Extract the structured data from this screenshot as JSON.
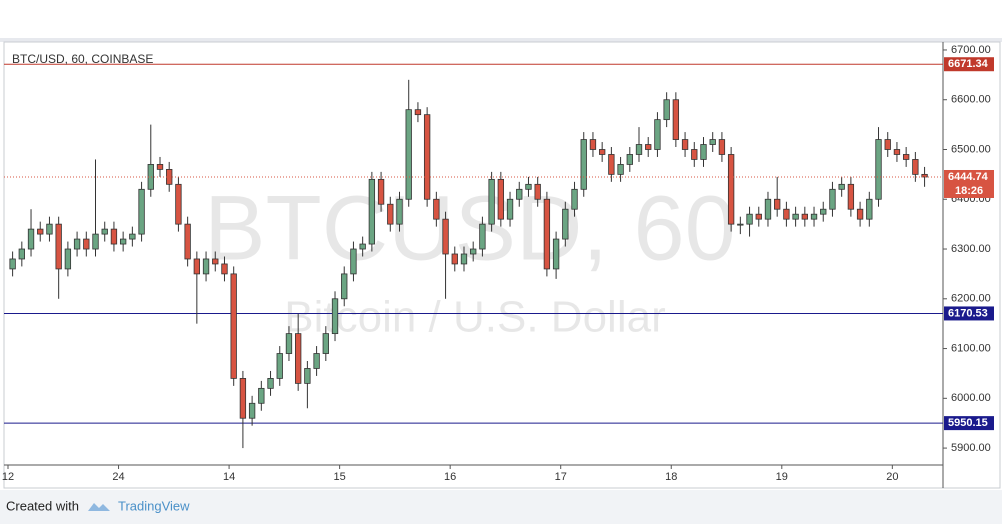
{
  "chart_data": {
    "type": "candlestick",
    "title": "BTC/USD, 60, COINBASE",
    "watermark": "BTCUSD, 60",
    "watermark_subtitle": "Bitcoin / U.S. Dollar",
    "footer_prefix": "Created with",
    "footer_brand": "TradingView",
    "up_color": "#6ba583",
    "down_color": "#d75442",
    "xlim": [
      0,
      203
    ],
    "xticks": [
      {
        "value": 0,
        "label": "12"
      },
      24,
      {
        "value": 48,
        "label": "14"
      },
      {
        "value": 72,
        "label": "15"
      },
      {
        "value": 96,
        "label": "16"
      },
      {
        "value": 120,
        "label": "17"
      },
      {
        "value": 144,
        "label": "18"
      },
      {
        "value": 168,
        "label": "19"
      },
      {
        "value": 192,
        "label": "20"
      }
    ],
    "ylim": [
      5866,
      6716
    ],
    "yticks": [
      {
        "value": 5900,
        "label": "5900.00"
      },
      {
        "value": 6000,
        "label": "6000.00"
      },
      {
        "value": 6100,
        "label": "6100.00"
      },
      {
        "value": 6200,
        "label": "6200.00"
      },
      {
        "value": 6300,
        "label": "6300.00"
      },
      {
        "value": 6400,
        "label": "6400.00"
      },
      {
        "value": 6500,
        "label": "6500.00"
      },
      {
        "value": 6600,
        "label": "6600.00"
      },
      {
        "value": 6700,
        "label": "6700.00"
      }
    ],
    "levels": [
      {
        "value": 6671.34,
        "color": "#c0392b"
      },
      {
        "value": 6170.53,
        "color": "#1a1a8c"
      },
      {
        "value": 5950.15,
        "color": "#1a1a8c"
      }
    ],
    "last_price": 6444.74,
    "countdown": "18:26",
    "candles": {
      "x": [
        1,
        3,
        5,
        7,
        9,
        11,
        13,
        15,
        17,
        19,
        21,
        23,
        25,
        27,
        29,
        31,
        33,
        35,
        37,
        39,
        41,
        43,
        45,
        47,
        49,
        51,
        53,
        55,
        57,
        59,
        61,
        63,
        65,
        67,
        69,
        71,
        73,
        75,
        77,
        79,
        81,
        83,
        85,
        87,
        89,
        91,
        93,
        95,
        97,
        99,
        101,
        103,
        105,
        107,
        109,
        111,
        113,
        115,
        117,
        119,
        121,
        123,
        125,
        127,
        129,
        131,
        133,
        135,
        137,
        139,
        141,
        143,
        145,
        147,
        149,
        151,
        153,
        155,
        157,
        159,
        161,
        163,
        165,
        167,
        169,
        171,
        173,
        175,
        177,
        179,
        181,
        183,
        185,
        187,
        189,
        191,
        193,
        195,
        197,
        199
      ],
      "open": [
        6260,
        6280,
        6300,
        6340,
        6330,
        6350,
        6260,
        6300,
        6320,
        6300,
        6330,
        6340,
        6310,
        6320,
        6330,
        6420,
        6470,
        6460,
        6430,
        6350,
        6280,
        6250,
        6280,
        6270,
        6250,
        6040,
        5960,
        5990,
        6020,
        6040,
        6090,
        6130,
        6030,
        6060,
        6090,
        6130,
        6200,
        6250,
        6300,
        6310,
        6440,
        6390,
        6350,
        6400,
        6580,
        6570,
        6400,
        6360,
        6290,
        6270,
        6290,
        6300,
        6350,
        6440,
        6360,
        6400,
        6420,
        6430,
        6400,
        6260,
        6320,
        6380,
        6420,
        6520,
        6500,
        6490,
        6450,
        6470,
        6490,
        6510,
        6500,
        6560,
        6600,
        6520,
        6500,
        6480,
        6510,
        6520,
        6490,
        6350,
        6350,
        6370,
        6360,
        6400,
        6380,
        6360,
        6370,
        6360,
        6370,
        6380,
        6420,
        6430,
        6380,
        6360,
        6400,
        6520,
        6500,
        6490,
        6480,
        6450
      ],
      "high": [
        6295,
        6315,
        6380,
        6355,
        6365,
        6365,
        6315,
        6335,
        6335,
        6480,
        6355,
        6355,
        6335,
        6345,
        6435,
        6550,
        6485,
        6475,
        6445,
        6365,
        6295,
        6295,
        6295,
        6285,
        6265,
        6055,
        6005,
        6035,
        6055,
        6105,
        6145,
        6170,
        6075,
        6105,
        6145,
        6215,
        6265,
        6315,
        6325,
        6455,
        6455,
        6405,
        6415,
        6640,
        6595,
        6585,
        6415,
        6375,
        6305,
        6305,
        6315,
        6365,
        6455,
        6455,
        6415,
        6435,
        6445,
        6445,
        6415,
        6335,
        6395,
        6435,
        6535,
        6535,
        6515,
        6505,
        6485,
        6505,
        6545,
        6525,
        6575,
        6615,
        6615,
        6535,
        6515,
        6525,
        6535,
        6535,
        6505,
        6365,
        6385,
        6385,
        6415,
        6445,
        6395,
        6385,
        6385,
        6385,
        6395,
        6435,
        6445,
        6445,
        6395,
        6415,
        6545,
        6535,
        6515,
        6505,
        6495,
        6465
      ],
      "low": [
        6245,
        6265,
        6285,
        6315,
        6315,
        6200,
        6245,
        6285,
        6285,
        6285,
        6315,
        6295,
        6295,
        6305,
        6315,
        6405,
        6445,
        6415,
        6335,
        6265,
        6150,
        6235,
        6255,
        6235,
        6025,
        5900,
        5945,
        5975,
        6005,
        6025,
        6075,
        6015,
        5980,
        6045,
        6075,
        6115,
        6185,
        6235,
        6285,
        6295,
        6375,
        6335,
        6335,
        6385,
        6555,
        6385,
        6345,
        6200,
        6255,
        6255,
        6275,
        6285,
        6335,
        6345,
        6345,
        6385,
        6405,
        6385,
        6245,
        6240,
        6305,
        6365,
        6405,
        6485,
        6475,
        6435,
        6435,
        6455,
        6475,
        6485,
        6485,
        6545,
        6505,
        6485,
        6465,
        6465,
        6495,
        6475,
        6335,
        6330,
        6325,
        6345,
        6345,
        6365,
        6345,
        6345,
        6345,
        6345,
        6355,
        6365,
        6405,
        6365,
        6345,
        6345,
        6385,
        6485,
        6475,
        6465,
        6435,
        6425
      ],
      "close": [
        6280,
        6300,
        6340,
        6330,
        6350,
        6260,
        6300,
        6320,
        6300,
        6330,
        6340,
        6310,
        6320,
        6330,
        6420,
        6470,
        6460,
        6430,
        6350,
        6280,
        6250,
        6280,
        6270,
        6250,
        6040,
        5960,
        5990,
        6020,
        6040,
        6090,
        6130,
        6030,
        6060,
        6090,
        6130,
        6200,
        6250,
        6300,
        6310,
        6440,
        6390,
        6350,
        6400,
        6580,
        6570,
        6400,
        6360,
        6290,
        6270,
        6290,
        6300,
        6350,
        6440,
        6360,
        6400,
        6420,
        6430,
        6400,
        6260,
        6320,
        6380,
        6420,
        6520,
        6500,
        6490,
        6450,
        6470,
        6490,
        6510,
        6500,
        6560,
        6600,
        6520,
        6500,
        6480,
        6510,
        6520,
        6490,
        6350,
        6350,
        6370,
        6360,
        6400,
        6380,
        6360,
        6370,
        6360,
        6370,
        6380,
        6420,
        6430,
        6380,
        6360,
        6400,
        6520,
        6500,
        6490,
        6480,
        6450,
        6444.74
      ]
    }
  }
}
